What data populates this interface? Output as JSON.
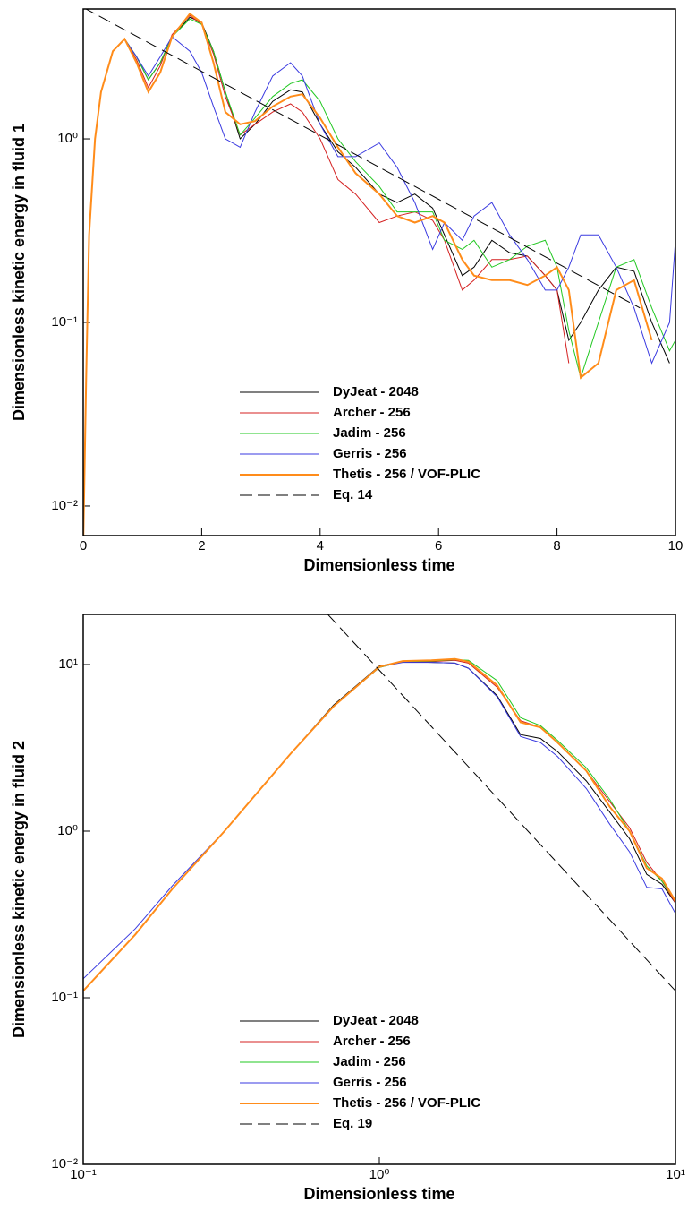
{
  "chart_data": [
    {
      "type": "line",
      "xlabel": "Dimensionless time",
      "ylabel": "Dimensionless kinetic energy in fluid 1",
      "xscale": "linear",
      "yscale": "log",
      "legend_loc": "lower center",
      "xlim": [
        0,
        10
      ],
      "ylim": [
        0.0069,
        5.1
      ],
      "xticks": [
        0,
        2,
        4,
        6,
        8,
        10
      ],
      "yticks": [
        {
          "value": 0.01,
          "label": "10⁻²"
        },
        {
          "value": 0.1,
          "label": "10⁻¹"
        },
        {
          "value": 1,
          "label": "10⁰"
        }
      ],
      "x": [
        0,
        0.05,
        0.1,
        0.2,
        0.3,
        0.5,
        0.7,
        0.9,
        1.1,
        1.3,
        1.5,
        1.8,
        2.0,
        2.2,
        2.4,
        2.65,
        2.9,
        3.2,
        3.5,
        3.7,
        4.0,
        4.3,
        4.6,
        5.0,
        5.3,
        5.6,
        5.9,
        6.1,
        6.4,
        6.6,
        6.9,
        7.2,
        7.5,
        7.8,
        8.0,
        8.2,
        8.4,
        8.7,
        9.0,
        9.3,
        9.6,
        9.9,
        10
      ],
      "series": [
        {
          "name": "DyJeat - 2048",
          "color": "#000000",
          "width": 1,
          "values": [
            0.006,
            0.05,
            0.3,
            1.0,
            1.8,
            3.0,
            3.5,
            2.8,
            2.1,
            2.6,
            3.6,
            4.6,
            4.3,
            3.0,
            1.8,
            1.0,
            1.2,
            1.6,
            1.85,
            1.8,
            1.2,
            0.85,
            0.7,
            0.5,
            0.45,
            0.5,
            0.42,
            0.3,
            0.18,
            0.2,
            0.28,
            0.24,
            0.23,
            0.18,
            0.15,
            0.08,
            0.1,
            0.15,
            0.2,
            0.19,
            0.1,
            0.06,
            null
          ]
        },
        {
          "name": "Archer - 256",
          "color": "#d42020",
          "width": 1,
          "values": [
            0.006,
            0.05,
            0.3,
            1.0,
            1.8,
            3.0,
            3.5,
            2.7,
            1.9,
            2.5,
            3.7,
            4.7,
            4.2,
            2.9,
            1.7,
            1.05,
            1.2,
            1.4,
            1.55,
            1.4,
            1.0,
            0.6,
            0.5,
            0.35,
            0.38,
            0.4,
            0.36,
            0.28,
            0.15,
            0.17,
            0.22,
            0.22,
            0.23,
            0.18,
            0.15,
            0.06,
            null,
            null,
            null,
            null,
            null,
            null,
            null
          ]
        },
        {
          "name": "Jadim - 256",
          "color": "#22c822",
          "width": 1,
          "values": [
            0.006,
            0.05,
            0.3,
            1.0,
            1.8,
            3.0,
            3.5,
            2.8,
            2.1,
            2.6,
            3.6,
            4.5,
            4.2,
            3.0,
            1.8,
            1.05,
            1.3,
            1.7,
            2.0,
            2.1,
            1.6,
            1.0,
            0.75,
            0.55,
            0.4,
            0.4,
            0.4,
            0.28,
            0.25,
            0.28,
            0.2,
            0.22,
            0.26,
            0.28,
            0.2,
            0.09,
            0.05,
            0.1,
            0.2,
            0.22,
            0.12,
            0.07,
            0.08
          ]
        },
        {
          "name": "Gerris - 256",
          "color": "#3a3ae0",
          "width": 1,
          "values": [
            0.006,
            0.05,
            0.3,
            1.0,
            1.8,
            3.0,
            3.5,
            2.8,
            2.2,
            2.8,
            3.6,
            3.0,
            2.3,
            1.5,
            1.0,
            0.9,
            1.4,
            2.2,
            2.6,
            2.2,
            1.2,
            0.8,
            0.8,
            0.95,
            0.7,
            0.45,
            0.25,
            0.35,
            0.28,
            0.38,
            0.45,
            0.3,
            0.22,
            0.15,
            0.15,
            0.2,
            0.3,
            0.3,
            0.2,
            0.12,
            0.06,
            0.1,
            0.28
          ]
        },
        {
          "name": "Thetis - 256 / VOF-PLIC",
          "color": "#ff8c1a",
          "width": 2,
          "values": [
            0.006,
            0.05,
            0.3,
            1.0,
            1.8,
            3.0,
            3.5,
            2.6,
            1.8,
            2.3,
            3.6,
            4.8,
            4.3,
            2.6,
            1.4,
            1.2,
            1.25,
            1.5,
            1.7,
            1.75,
            1.3,
            0.9,
            0.65,
            0.5,
            0.38,
            0.35,
            0.38,
            0.35,
            0.22,
            0.18,
            0.17,
            0.17,
            0.16,
            0.18,
            0.2,
            0.15,
            0.05,
            0.06,
            0.15,
            0.17,
            0.08,
            null,
            null
          ]
        },
        {
          "name": "Eq. 14",
          "color": "#000000",
          "width": 1,
          "dashed": true,
          "x": [
            0,
            9.4
          ],
          "values": [
            5.2,
            0.12
          ]
        }
      ]
    },
    {
      "type": "line",
      "xlabel": "Dimensionless time",
      "ylabel": "Dimensionless kinetic energy in fluid 2",
      "xscale": "log",
      "yscale": "log",
      "legend_loc": "lower center",
      "xlim": [
        0.1,
        10
      ],
      "ylim": [
        0.01,
        20
      ],
      "xticks": [
        {
          "value": 0.1,
          "label": "10⁻¹"
        },
        {
          "value": 1,
          "label": "10⁰"
        },
        {
          "value": 10,
          "label": "10¹"
        }
      ],
      "yticks": [
        {
          "value": 0.01,
          "label": "10⁻²"
        },
        {
          "value": 0.1,
          "label": "10⁻¹"
        },
        {
          "value": 1,
          "label": "10⁰"
        },
        {
          "value": 10,
          "label": "10¹"
        }
      ],
      "x": [
        0.1,
        0.15,
        0.2,
        0.3,
        0.5,
        0.7,
        1.0,
        1.2,
        1.5,
        1.8,
        2.0,
        2.5,
        3.0,
        3.5,
        4,
        5,
        6,
        7,
        8,
        9,
        10
      ],
      "series": [
        {
          "name": "DyJeat - 2048",
          "color": "#000000",
          "width": 1,
          "values": [
            0.11,
            0.24,
            0.45,
            1.0,
            2.9,
            5.7,
            9.8,
            10.4,
            10.3,
            10.2,
            9.5,
            6.5,
            3.8,
            3.6,
            3.0,
            2.0,
            1.3,
            0.9,
            0.55,
            0.48,
            0.37
          ]
        },
        {
          "name": "Archer - 256",
          "color": "#d42020",
          "width": 1,
          "values": [
            0.11,
            0.24,
            0.45,
            1.0,
            2.9,
            5.6,
            9.6,
            10.4,
            10.4,
            10.6,
            10.2,
            7.3,
            4.6,
            4.2,
            3.4,
            2.3,
            1.5,
            1.05,
            0.65,
            0.5,
            0.37
          ]
        },
        {
          "name": "Jadim - 256",
          "color": "#22c822",
          "width": 1,
          "values": [
            0.11,
            0.24,
            0.45,
            1.0,
            2.9,
            5.6,
            9.6,
            10.4,
            10.5,
            10.7,
            10.6,
            8.0,
            4.8,
            4.3,
            3.5,
            2.4,
            1.55,
            1.0,
            0.62,
            0.5,
            0.38
          ]
        },
        {
          "name": "Gerris - 256",
          "color": "#3a3ae0",
          "width": 1,
          "values": [
            0.13,
            0.26,
            0.47,
            1.0,
            2.9,
            5.6,
            9.7,
            10.3,
            10.3,
            10.2,
            9.5,
            6.4,
            3.7,
            3.4,
            2.8,
            1.8,
            1.1,
            0.75,
            0.46,
            0.45,
            0.32
          ]
        },
        {
          "name": "Thetis - 256 / VOF-PLIC",
          "color": "#ff8c1a",
          "width": 2,
          "values": [
            0.11,
            0.24,
            0.45,
            1.0,
            2.9,
            5.6,
            9.7,
            10.5,
            10.6,
            10.8,
            10.4,
            7.5,
            4.5,
            4.2,
            3.4,
            2.3,
            1.4,
            1.0,
            0.6,
            0.52,
            0.38
          ]
        },
        {
          "name": "Eq. 19",
          "color": "#000000",
          "width": 1,
          "dashed": true,
          "x": [
            0.67,
            10
          ],
          "values": [
            20,
            0.11
          ]
        }
      ]
    }
  ]
}
